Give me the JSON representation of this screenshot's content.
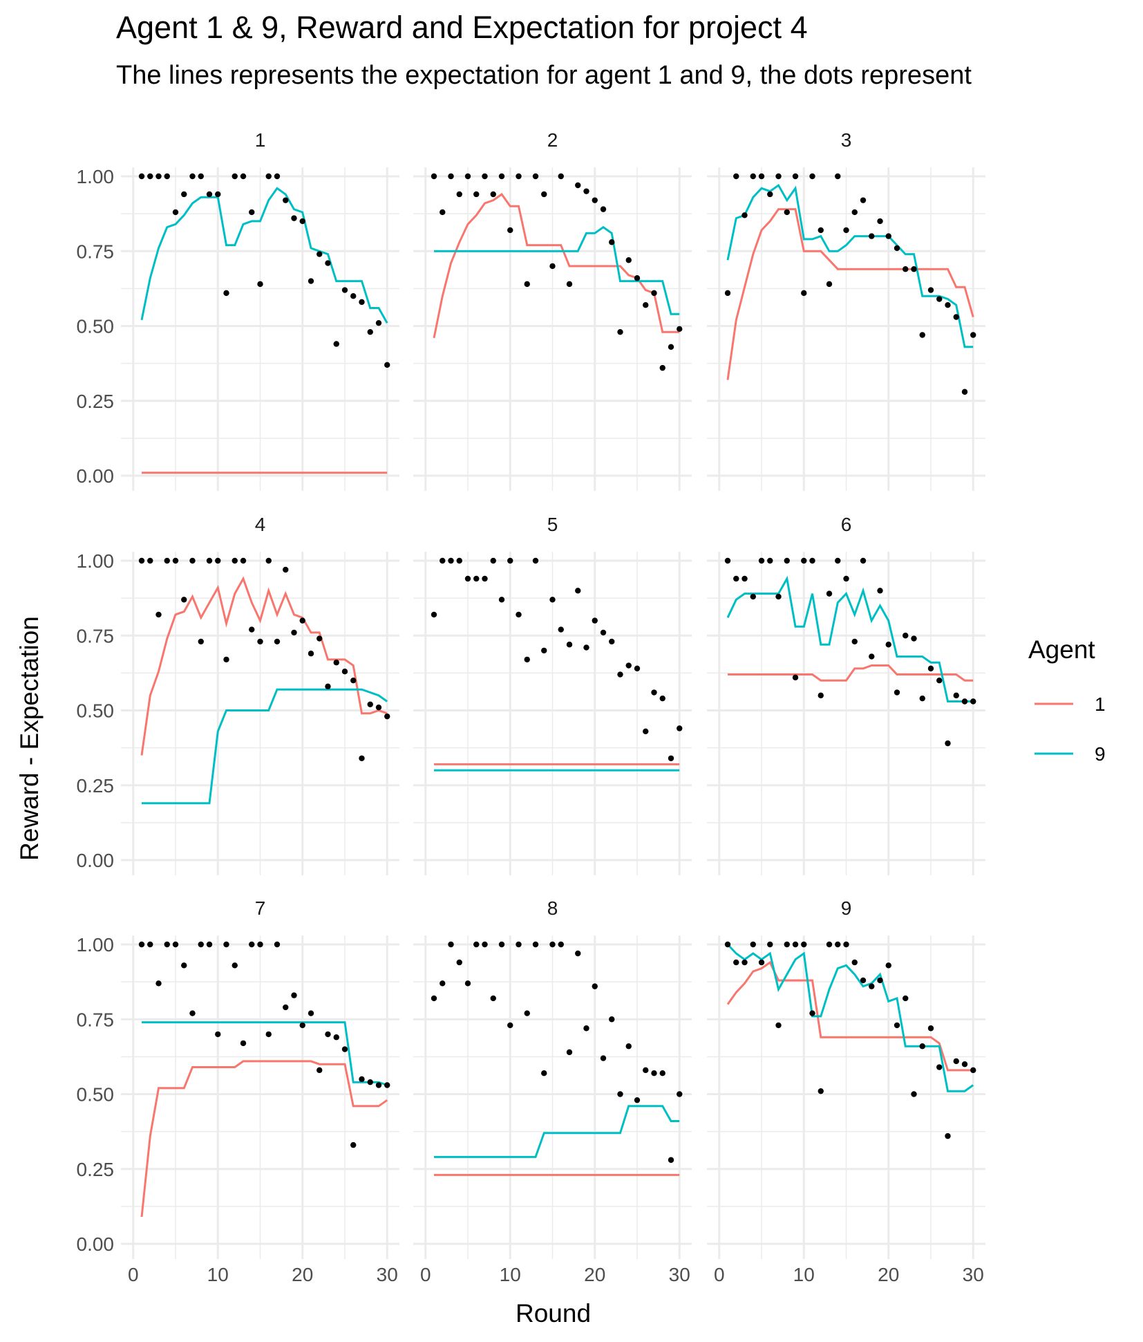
{
  "title": "Agent 1 & 9, Reward and Expectation for project 4",
  "subtitle": "The lines represents the expectation for agent 1 and 9, the dots represent",
  "colors": {
    "agent1": "#F8766D",
    "agent9": "#00BFC4",
    "points": "#000000",
    "grid": "#EBEBEB"
  },
  "chart_data": {
    "type": "line",
    "facet_grid": "3x3",
    "xlabel": "Round",
    "ylabel": "Reward - Expectation",
    "xlim": [
      0,
      30
    ],
    "ylim": [
      0,
      1
    ],
    "x_ticks": [
      "0",
      "10",
      "20",
      "30"
    ],
    "y_ticks": [
      "0.00",
      "0.25",
      "0.50",
      "0.75",
      "1.00"
    ],
    "grid": true,
    "legend": {
      "title": "Agent",
      "position": "right",
      "entries": [
        "1",
        "9"
      ]
    },
    "panels": [
      {
        "label": "1",
        "agent1": [
          0.01,
          0.01,
          0.01,
          0.01,
          0.01,
          0.01,
          0.01,
          0.01,
          0.01,
          0.01,
          0.01,
          0.01,
          0.01,
          0.01,
          0.01,
          0.01,
          0.01,
          0.01,
          0.01,
          0.01,
          0.01,
          0.01,
          0.01,
          0.01,
          0.01,
          0.01,
          0.01,
          0.01,
          0.01,
          0.01
        ],
        "agent9": [
          0.52,
          0.66,
          0.76,
          0.83,
          0.84,
          0.87,
          0.91,
          0.93,
          0.93,
          0.93,
          0.77,
          0.77,
          0.84,
          0.85,
          0.85,
          0.92,
          0.96,
          0.94,
          0.89,
          0.88,
          0.76,
          0.75,
          0.74,
          0.65,
          0.65,
          0.65,
          0.65,
          0.56,
          0.56,
          0.51
        ],
        "reward": [
          1.0,
          1.0,
          1.0,
          1.0,
          0.88,
          0.94,
          1.0,
          1.0,
          0.94,
          0.94,
          0.61,
          1.0,
          1.0,
          0.88,
          0.64,
          1.0,
          1.0,
          0.92,
          0.86,
          0.85,
          0.65,
          0.74,
          0.71,
          0.44,
          0.62,
          0.6,
          0.58,
          0.48,
          0.51,
          0.37
        ]
      },
      {
        "label": "2",
        "agent1": [
          0.46,
          0.6,
          0.71,
          0.78,
          0.84,
          0.87,
          0.91,
          0.92,
          0.94,
          0.9,
          0.9,
          0.77,
          0.77,
          0.77,
          0.77,
          0.77,
          0.7,
          0.7,
          0.7,
          0.7,
          0.7,
          0.7,
          0.7,
          0.67,
          0.66,
          0.62,
          0.61,
          0.48,
          0.48,
          0.48
        ],
        "agent9": [
          0.75,
          0.75,
          0.75,
          0.75,
          0.75,
          0.75,
          0.75,
          0.75,
          0.75,
          0.75,
          0.75,
          0.75,
          0.75,
          0.75,
          0.75,
          0.75,
          0.75,
          0.75,
          0.81,
          0.81,
          0.83,
          0.81,
          0.65,
          0.65,
          0.65,
          0.65,
          0.65,
          0.65,
          0.54,
          0.54
        ],
        "reward": [
          1.0,
          0.88,
          1.0,
          0.94,
          1.0,
          0.94,
          1.0,
          0.94,
          1.0,
          0.82,
          1.0,
          0.64,
          1.0,
          0.94,
          0.7,
          1.0,
          0.64,
          0.97,
          0.95,
          0.92,
          0.89,
          0.78,
          0.48,
          0.72,
          0.66,
          0.57,
          0.61,
          0.36,
          0.43,
          0.49
        ]
      },
      {
        "label": "3",
        "agent1": [
          0.32,
          0.52,
          0.63,
          0.74,
          0.82,
          0.85,
          0.89,
          0.89,
          0.89,
          0.75,
          0.75,
          0.75,
          0.72,
          0.69,
          0.69,
          0.69,
          0.69,
          0.69,
          0.69,
          0.69,
          0.69,
          0.69,
          0.69,
          0.69,
          0.69,
          0.69,
          0.69,
          0.63,
          0.63,
          0.53
        ],
        "agent9": [
          0.72,
          0.86,
          0.87,
          0.93,
          0.96,
          0.95,
          0.97,
          0.92,
          0.96,
          0.79,
          0.79,
          0.8,
          0.75,
          0.75,
          0.77,
          0.8,
          0.8,
          0.8,
          0.8,
          0.8,
          0.77,
          0.74,
          0.74,
          0.6,
          0.6,
          0.6,
          0.59,
          0.57,
          0.43,
          0.43
        ],
        "reward": [
          0.61,
          1.0,
          0.87,
          1.0,
          1.0,
          0.94,
          1.0,
          0.88,
          1.0,
          0.61,
          1.0,
          0.82,
          0.64,
          1.0,
          0.82,
          0.88,
          0.92,
          0.8,
          0.85,
          0.8,
          0.76,
          0.69,
          0.69,
          0.47,
          0.62,
          0.59,
          0.57,
          0.53,
          0.28,
          0.47
        ]
      },
      {
        "label": "4",
        "agent1": [
          0.35,
          0.55,
          0.63,
          0.74,
          0.82,
          0.83,
          0.88,
          0.81,
          0.86,
          0.91,
          0.79,
          0.89,
          0.94,
          0.86,
          0.8,
          0.9,
          0.82,
          0.89,
          0.82,
          0.81,
          0.76,
          0.76,
          0.67,
          0.67,
          0.67,
          0.65,
          0.49,
          0.49,
          0.5,
          0.49
        ],
        "agent9": [
          0.19,
          0.19,
          0.19,
          0.19,
          0.19,
          0.19,
          0.19,
          0.19,
          0.19,
          0.43,
          0.5,
          0.5,
          0.5,
          0.5,
          0.5,
          0.5,
          0.57,
          0.57,
          0.57,
          0.57,
          0.57,
          0.57,
          0.57,
          0.57,
          0.57,
          0.57,
          0.57,
          0.56,
          0.55,
          0.53
        ],
        "reward": [
          1.0,
          1.0,
          0.82,
          1.0,
          1.0,
          0.87,
          1.0,
          0.73,
          1.0,
          1.0,
          0.67,
          1.0,
          1.0,
          0.77,
          0.73,
          1.0,
          0.73,
          0.97,
          0.76,
          0.8,
          0.69,
          0.74,
          0.58,
          0.66,
          0.63,
          0.6,
          0.34,
          0.52,
          0.51,
          0.48
        ]
      },
      {
        "label": "5",
        "agent1": [
          0.32,
          0.32,
          0.32,
          0.32,
          0.32,
          0.32,
          0.32,
          0.32,
          0.32,
          0.32,
          0.32,
          0.32,
          0.32,
          0.32,
          0.32,
          0.32,
          0.32,
          0.32,
          0.32,
          0.32,
          0.32,
          0.32,
          0.32,
          0.32,
          0.32,
          0.32,
          0.32,
          0.32,
          0.32,
          0.32
        ],
        "agent9": [
          0.3,
          0.3,
          0.3,
          0.3,
          0.3,
          0.3,
          0.3,
          0.3,
          0.3,
          0.3,
          0.3,
          0.3,
          0.3,
          0.3,
          0.3,
          0.3,
          0.3,
          0.3,
          0.3,
          0.3,
          0.3,
          0.3,
          0.3,
          0.3,
          0.3,
          0.3,
          0.3,
          0.3,
          0.3,
          0.3
        ],
        "reward": [
          0.82,
          1.0,
          1.0,
          1.0,
          0.94,
          0.94,
          0.94,
          1.0,
          0.87,
          1.0,
          0.82,
          0.67,
          1.0,
          0.7,
          0.87,
          0.77,
          0.72,
          0.9,
          0.71,
          0.8,
          0.76,
          0.73,
          0.62,
          0.65,
          0.64,
          0.43,
          0.56,
          0.54,
          0.34,
          0.44
        ]
      },
      {
        "label": "6",
        "agent1": [
          0.62,
          0.62,
          0.62,
          0.62,
          0.62,
          0.62,
          0.62,
          0.62,
          0.62,
          0.62,
          0.62,
          0.6,
          0.6,
          0.6,
          0.6,
          0.64,
          0.64,
          0.65,
          0.65,
          0.65,
          0.62,
          0.62,
          0.62,
          0.62,
          0.62,
          0.62,
          0.62,
          0.62,
          0.6,
          0.6
        ],
        "agent9": [
          0.81,
          0.87,
          0.89,
          0.89,
          0.89,
          0.89,
          0.89,
          0.94,
          0.78,
          0.78,
          0.89,
          0.72,
          0.72,
          0.86,
          0.89,
          0.82,
          0.9,
          0.8,
          0.85,
          0.8,
          0.68,
          0.68,
          0.68,
          0.68,
          0.66,
          0.66,
          0.53,
          0.53,
          0.53,
          0.53
        ],
        "reward": [
          1.0,
          0.94,
          0.94,
          0.88,
          1.0,
          1.0,
          0.88,
          1.0,
          0.61,
          1.0,
          1.0,
          0.55,
          0.89,
          1.0,
          0.94,
          0.73,
          1.0,
          0.68,
          0.9,
          0.72,
          0.56,
          0.75,
          0.74,
          0.54,
          0.64,
          0.6,
          0.39,
          0.55,
          0.53,
          0.53
        ]
      },
      {
        "label": "7",
        "agent1": [
          0.09,
          0.36,
          0.52,
          0.52,
          0.52,
          0.52,
          0.59,
          0.59,
          0.59,
          0.59,
          0.59,
          0.59,
          0.61,
          0.61,
          0.61,
          0.61,
          0.61,
          0.61,
          0.61,
          0.61,
          0.61,
          0.6,
          0.6,
          0.6,
          0.6,
          0.46,
          0.46,
          0.46,
          0.46,
          0.48
        ],
        "agent9": [
          0.74,
          0.74,
          0.74,
          0.74,
          0.74,
          0.74,
          0.74,
          0.74,
          0.74,
          0.74,
          0.74,
          0.74,
          0.74,
          0.74,
          0.74,
          0.74,
          0.74,
          0.74,
          0.74,
          0.74,
          0.74,
          0.74,
          0.74,
          0.74,
          0.74,
          0.54,
          0.54,
          0.54,
          0.54,
          0.53
        ],
        "reward": [
          1.0,
          1.0,
          0.87,
          1.0,
          1.0,
          0.93,
          0.77,
          1.0,
          1.0,
          0.7,
          1.0,
          0.93,
          0.67,
          1.0,
          1.0,
          0.7,
          1.0,
          0.79,
          0.83,
          0.73,
          0.77,
          0.58,
          0.7,
          0.69,
          0.65,
          0.33,
          0.55,
          0.54,
          0.53,
          0.53
        ]
      },
      {
        "label": "8",
        "agent1": [
          0.23,
          0.23,
          0.23,
          0.23,
          0.23,
          0.23,
          0.23,
          0.23,
          0.23,
          0.23,
          0.23,
          0.23,
          0.23,
          0.23,
          0.23,
          0.23,
          0.23,
          0.23,
          0.23,
          0.23,
          0.23,
          0.23,
          0.23,
          0.23,
          0.23,
          0.23,
          0.23,
          0.23,
          0.23,
          0.23
        ],
        "agent9": [
          0.29,
          0.29,
          0.29,
          0.29,
          0.29,
          0.29,
          0.29,
          0.29,
          0.29,
          0.29,
          0.29,
          0.29,
          0.29,
          0.37,
          0.37,
          0.37,
          0.37,
          0.37,
          0.37,
          0.37,
          0.37,
          0.37,
          0.37,
          0.46,
          0.46,
          0.46,
          0.46,
          0.46,
          0.41,
          0.41
        ],
        "reward": [
          0.82,
          0.87,
          1.0,
          0.94,
          0.87,
          1.0,
          1.0,
          0.82,
          1.0,
          0.73,
          1.0,
          0.77,
          1.0,
          0.57,
          1.0,
          1.0,
          0.64,
          0.97,
          0.72,
          0.86,
          0.62,
          0.75,
          0.5,
          0.66,
          0.48,
          0.58,
          0.57,
          0.57,
          0.28,
          0.5
        ]
      },
      {
        "label": "9",
        "agent1": [
          0.8,
          0.84,
          0.87,
          0.91,
          0.92,
          0.94,
          0.88,
          0.88,
          0.88,
          0.88,
          0.88,
          0.69,
          0.69,
          0.69,
          0.69,
          0.69,
          0.69,
          0.69,
          0.69,
          0.69,
          0.69,
          0.69,
          0.69,
          0.69,
          0.69,
          0.67,
          0.58,
          0.58,
          0.58,
          0.58
        ],
        "agent9": [
          1.0,
          0.97,
          0.95,
          0.97,
          0.95,
          0.97,
          0.85,
          0.9,
          0.95,
          0.97,
          0.76,
          0.76,
          0.85,
          0.92,
          0.93,
          0.9,
          0.86,
          0.87,
          0.9,
          0.81,
          0.82,
          0.66,
          0.66,
          0.66,
          0.66,
          0.66,
          0.51,
          0.51,
          0.51,
          0.53
        ],
        "reward": [
          1.0,
          0.94,
          0.94,
          1.0,
          0.94,
          1.0,
          0.73,
          1.0,
          1.0,
          1.0,
          0.77,
          0.51,
          1.0,
          1.0,
          1.0,
          0.94,
          0.88,
          0.86,
          0.88,
          0.93,
          0.73,
          0.82,
          0.5,
          0.66,
          0.72,
          0.59,
          0.36,
          0.61,
          0.6,
          0.58
        ]
      }
    ]
  }
}
